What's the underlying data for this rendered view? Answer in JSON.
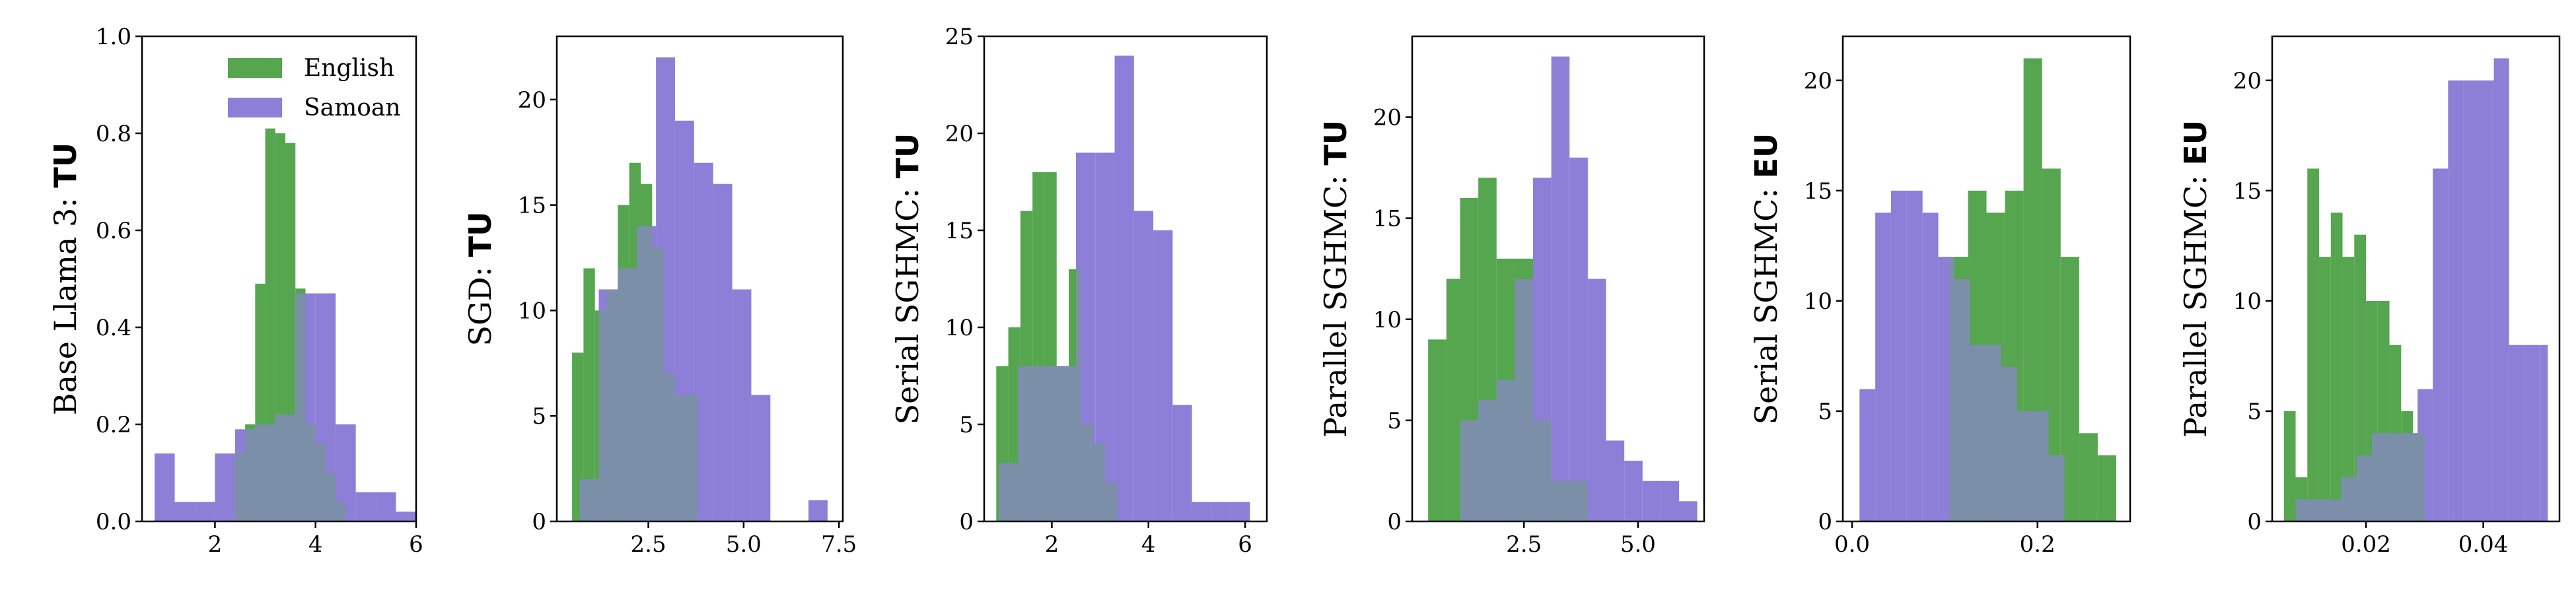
{
  "colors": {
    "English": "#55a64f",
    "Samoan": "#8d7ed8",
    "overlap": "#7b8fa9"
  },
  "chart_data": [
    {
      "type": "histogram",
      "ylabel_prefix": "Base Llama 3: ",
      "ylabel_bold": "TU",
      "xlim": [
        0.55,
        6.0
      ],
      "ylim": [
        0,
        1.0
      ],
      "xticks": [
        2,
        4,
        6
      ],
      "xtick_labels": [
        "2",
        "4",
        "6"
      ],
      "yticks": [
        0,
        0.2,
        0.4,
        0.6,
        0.8,
        1.0
      ],
      "ytick_labels": [
        "0.0",
        "0.2",
        "0.4",
        "0.6",
        "0.8",
        "1.0"
      ],
      "legend": {
        "position": "top-right",
        "entries": [
          "English",
          "Samoan"
        ]
      },
      "series": [
        {
          "name": "English",
          "edges": [
            2.4,
            2.6,
            2.8,
            3.0,
            3.2,
            3.4,
            3.6,
            3.8,
            4.0,
            4.2,
            4.4,
            4.6
          ],
          "counts": [
            0.14,
            0.2,
            0.49,
            0.81,
            0.8,
            0.78,
            0.48,
            0.2,
            0.16,
            0.1,
            0.04
          ]
        },
        {
          "name": "Samoan",
          "edges": [
            0.8,
            1.2,
            1.6,
            2.0,
            2.4,
            2.8,
            3.2,
            3.6,
            4.0,
            4.4,
            4.8,
            5.2,
            5.6,
            6.0
          ],
          "counts": [
            0.14,
            0.04,
            0.04,
            0.14,
            0.19,
            0.2,
            0.22,
            0.47,
            0.47,
            0.2,
            0.06,
            0.06,
            0.02
          ]
        }
      ]
    },
    {
      "type": "histogram",
      "ylabel_prefix": "SGD: ",
      "ylabel_bold": "TU",
      "xlim": [
        0.1,
        7.6
      ],
      "ylim": [
        0,
        23.0
      ],
      "xticks": [
        2.5,
        5.0,
        7.5
      ],
      "xtick_labels": [
        "2.5",
        "5.0",
        "7.5"
      ],
      "yticks": [
        0,
        5,
        10,
        15,
        20
      ],
      "ytick_labels": [
        "0",
        "5",
        "10",
        "15",
        "20"
      ],
      "series": [
        {
          "name": "English",
          "edges": [
            0.5,
            0.8,
            1.1,
            1.4,
            1.7,
            2.0,
            2.3,
            2.6,
            2.9,
            3.2,
            3.5,
            3.8
          ],
          "counts": [
            8,
            12,
            10,
            11,
            15,
            17,
            16,
            13,
            7,
            6,
            6
          ]
        },
        {
          "name": "Samoan",
          "edges": [
            0.7,
            1.2,
            1.7,
            2.2,
            2.7,
            3.2,
            3.7,
            4.2,
            4.7,
            5.2,
            5.7,
            6.2,
            6.7,
            7.2
          ],
          "counts": [
            2,
            11,
            12,
            14,
            22,
            19,
            17,
            16,
            11,
            6,
            0,
            0,
            1
          ]
        }
      ]
    },
    {
      "type": "histogram",
      "ylabel_prefix": "Serial SGHMC: ",
      "ylabel_bold": "TU",
      "xlim": [
        0.6,
        6.45
      ],
      "ylim": [
        0,
        25.0
      ],
      "xticks": [
        2,
        4,
        6
      ],
      "xtick_labels": [
        "2",
        "4",
        "6"
      ],
      "yticks": [
        0,
        5,
        10,
        15,
        20,
        25
      ],
      "ytick_labels": [
        "0",
        "5",
        "10",
        "15",
        "20",
        "25"
      ],
      "series": [
        {
          "name": "English",
          "edges": [
            0.85,
            1.1,
            1.35,
            1.6,
            1.85,
            2.1,
            2.35,
            2.6,
            2.85,
            3.1,
            3.35
          ],
          "counts": [
            8,
            10,
            16,
            18,
            18,
            8,
            13,
            5,
            4,
            2
          ]
        },
        {
          "name": "Samoan",
          "edges": [
            0.9,
            1.3,
            1.7,
            2.1,
            2.5,
            2.9,
            3.3,
            3.7,
            4.1,
            4.5,
            4.9,
            5.3,
            5.7,
            6.1
          ],
          "counts": [
            3,
            8,
            8,
            8,
            19,
            19,
            24,
            16,
            15,
            6,
            1,
            1,
            1
          ]
        }
      ]
    },
    {
      "type": "histogram",
      "ylabel_prefix": "Parallel SGHMC: ",
      "ylabel_bold": "TU",
      "xlim": [
        0.05,
        6.45
      ],
      "ylim": [
        0,
        24.0
      ],
      "xticks": [
        2.5,
        5.0
      ],
      "xtick_labels": [
        "2.5",
        "5.0"
      ],
      "yticks": [
        0,
        5,
        10,
        15,
        20
      ],
      "ytick_labels": [
        "0",
        "5",
        "10",
        "15",
        "20"
      ],
      "series": [
        {
          "name": "English",
          "edges": [
            0.4,
            0.8,
            1.1,
            1.5,
            1.9,
            2.3,
            2.7,
            3.1,
            3.5,
            3.9
          ],
          "counts": [
            9,
            12,
            16,
            17,
            13,
            13,
            5,
            2,
            2
          ]
        },
        {
          "name": "Samoan",
          "edges": [
            1.1,
            1.5,
            1.9,
            2.3,
            2.7,
            3.1,
            3.5,
            3.9,
            4.3,
            4.7,
            5.1,
            5.5,
            5.9,
            6.3
          ],
          "counts": [
            5,
            6,
            7,
            12,
            17,
            23,
            18,
            12,
            4,
            3,
            2,
            2,
            1
          ]
        }
      ]
    },
    {
      "type": "histogram",
      "ylabel_prefix": "Serial SGHMC: ",
      "ylabel_bold": "EU",
      "xlim": [
        -0.01,
        0.3
      ],
      "ylim": [
        0,
        22.0
      ],
      "xticks": [
        0.0,
        0.2
      ],
      "xtick_labels": [
        "0.0",
        "0.2"
      ],
      "yticks": [
        0,
        5,
        10,
        15,
        20
      ],
      "ytick_labels": [
        "0",
        "5",
        "10",
        "15",
        "20"
      ],
      "series": [
        {
          "name": "English",
          "edges": [
            0.105,
            0.125,
            0.145,
            0.165,
            0.185,
            0.205,
            0.225,
            0.245,
            0.265,
            0.285
          ],
          "counts": [
            12,
            15,
            14,
            15,
            21,
            16,
            12,
            4,
            3
          ]
        },
        {
          "name": "Samoan",
          "edges": [
            0.008,
            0.025,
            0.042,
            0.059,
            0.076,
            0.093,
            0.11,
            0.127,
            0.144,
            0.161,
            0.178,
            0.195,
            0.212,
            0.229
          ],
          "counts": [
            6,
            14,
            15,
            15,
            14,
            12,
            11,
            8,
            8,
            7,
            5,
            5,
            3
          ]
        }
      ]
    },
    {
      "type": "histogram",
      "ylabel_prefix": "Parallel SGHMC: ",
      "ylabel_bold": "EU",
      "xlim": [
        0.004,
        0.053
      ],
      "ylim": [
        0,
        22.0
      ],
      "xticks": [
        0.02,
        0.04
      ],
      "xtick_labels": [
        "0.02",
        "0.04"
      ],
      "yticks": [
        0,
        5,
        10,
        15,
        20
      ],
      "ytick_labels": [
        "0",
        "5",
        "10",
        "15",
        "20"
      ],
      "series": [
        {
          "name": "English",
          "edges": [
            0.006,
            0.008,
            0.01,
            0.012,
            0.014,
            0.016,
            0.018,
            0.02,
            0.022,
            0.024,
            0.026,
            0.028,
            0.03
          ],
          "counts": [
            5,
            2,
            16,
            12,
            14,
            12,
            13,
            10,
            10,
            8,
            5,
            4
          ]
        },
        {
          "name": "Samoan",
          "edges": [
            0.008,
            0.0106,
            0.0132,
            0.0158,
            0.0184,
            0.021,
            0.0236,
            0.0262,
            0.0288,
            0.0314,
            0.034,
            0.0366,
            0.0392,
            0.0418,
            0.0444,
            0.047,
            0.0496,
            0.051
          ],
          "counts": [
            1,
            1,
            1,
            2,
            3,
            4,
            4,
            4,
            6,
            16,
            20,
            20,
            20,
            21,
            8,
            8,
            8
          ]
        }
      ]
    }
  ]
}
